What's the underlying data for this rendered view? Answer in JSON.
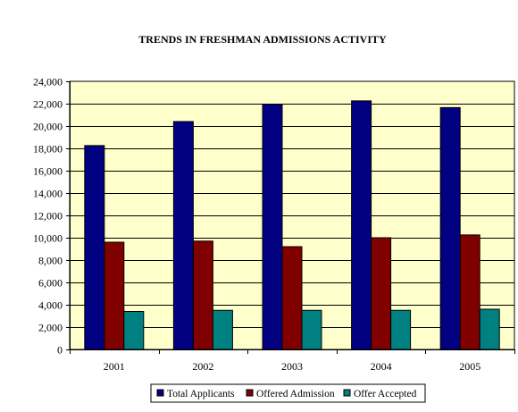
{
  "chart_data": {
    "type": "bar",
    "title": "TRENDS IN FRESHMAN ADMISSIONS ACTIVITY",
    "xlabel": "",
    "ylabel": "",
    "categories": [
      "2001",
      "2002",
      "2003",
      "2004",
      "2005"
    ],
    "series": [
      {
        "name": "Total Applicants",
        "color": "#000080",
        "values": [
          18250,
          20400,
          21950,
          22250,
          21650
        ]
      },
      {
        "name": "Offered Admission",
        "color": "#800000",
        "values": [
          9600,
          9700,
          9200,
          10000,
          10250
        ]
      },
      {
        "name": "Offer Accepted",
        "color": "#008080",
        "values": [
          3400,
          3500,
          3500,
          3500,
          3600
        ]
      }
    ],
    "ylim": [
      0,
      24000
    ],
    "y_ticks": [
      "0",
      "2,000",
      "4,000",
      "6,000",
      "8,000",
      "10,000",
      "12,000",
      "14,000",
      "16,000",
      "18,000",
      "20,000",
      "22,000",
      "24,000"
    ],
    "grid": true,
    "legend_position": "bottom",
    "plot_background": "#ffffcc"
  }
}
